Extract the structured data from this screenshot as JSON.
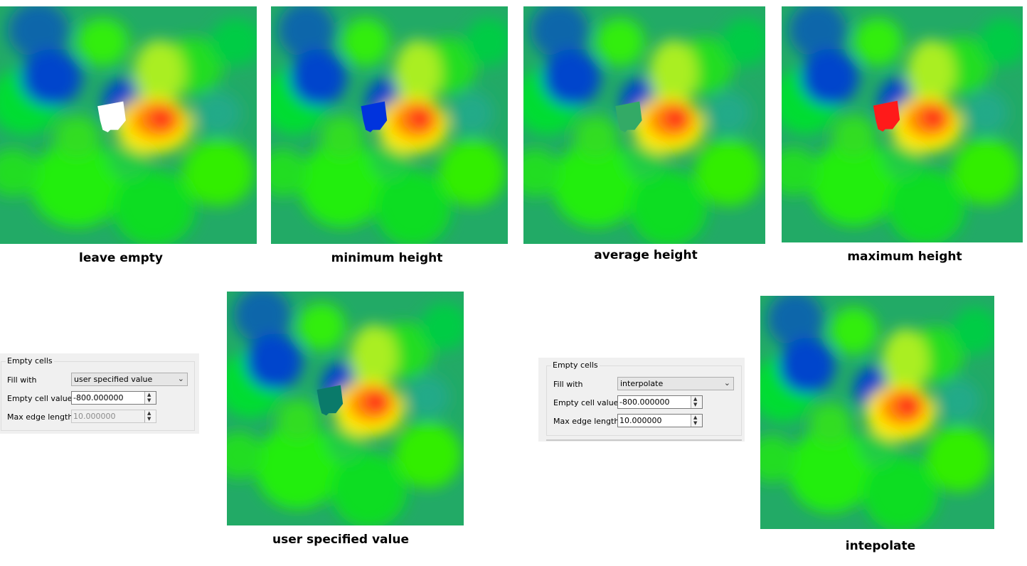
{
  "panels": [
    {
      "id": "leave-empty",
      "caption": "leave empty",
      "variant": "empty"
    },
    {
      "id": "minimum-height",
      "caption": "minimum height",
      "variant": "min"
    },
    {
      "id": "average-height",
      "caption": "average height",
      "variant": "avg"
    },
    {
      "id": "maximum-height",
      "caption": "maximum height",
      "variant": "max"
    },
    {
      "id": "user-specified-value",
      "caption": "user specified value",
      "variant": "user"
    },
    {
      "id": "interpolate",
      "caption": "intepolate",
      "variant": "interp"
    }
  ],
  "dialog_user": {
    "group_label": "Empty cells",
    "fill_with_label": "Fill with",
    "fill_with_value": "user specified value",
    "empty_cell_label": "Empty cell value",
    "empty_cell_value": "-800.000000",
    "max_edge_label": "Max edge length",
    "max_edge_value": "10.000000",
    "max_edge_disabled": true
  },
  "dialog_interp": {
    "group_label": "Empty cells",
    "fill_with_label": "Fill with",
    "fill_with_value": "interpolate",
    "empty_cell_label": "Empty cell value",
    "empty_cell_value": "-800.000000",
    "max_edge_label": "Max edge length",
    "max_edge_value": "10.000000",
    "max_edge_disabled": false
  },
  "colors": {
    "low": "#0033dd",
    "mid": "#00ee00",
    "high": "#ffee00",
    "peak": "#ff1a1a",
    "empty": "#ffffff",
    "user_fill": "#0a7a6a",
    "avg_fill": "#33aa66"
  }
}
